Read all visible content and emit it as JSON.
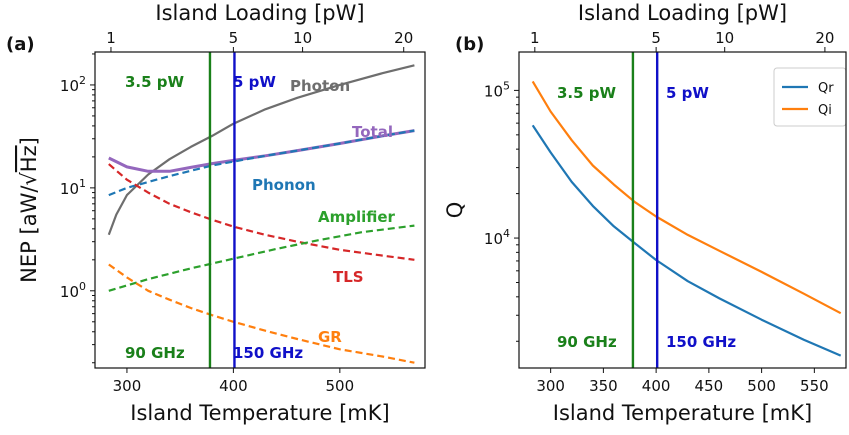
{
  "chart_data": [
    {
      "panel_label": "(a)",
      "type": "line",
      "xlabel": "Island Temperature [mK]",
      "ylabel_prefix": "NEP [aW/",
      "ylabel_root": "Hz",
      "ylabel_suffix": "]",
      "top_xlabel": "Island Loading [pW]",
      "top_ticks": [
        {
          "label": "1",
          "T": 285
        },
        {
          "label": "5",
          "T": 400
        },
        {
          "label": "10",
          "T": 465
        },
        {
          "label": "20",
          "T": 560
        }
      ],
      "xlim": [
        270,
        580
      ],
      "ylim_log10": [
        -0.75,
        2.32
      ],
      "yscale": "log",
      "xticks": [
        300,
        400,
        500
      ],
      "yticks": [
        {
          "label": "10",
          "exp": "0",
          "pow": 0
        },
        {
          "label": "10",
          "exp": "1",
          "pow": 1
        },
        {
          "label": "10",
          "exp": "2",
          "pow": 2
        }
      ],
      "series": [
        {
          "name": "Photon",
          "style": "solid",
          "color": "#6e6e6e",
          "x": [
            283,
            290,
            300,
            320,
            340,
            360,
            380,
            400,
            430,
            460,
            500,
            540,
            570
          ],
          "y": [
            3.5,
            5.5,
            8.5,
            13.5,
            19,
            25,
            32,
            42,
            58,
            75,
            100,
            130,
            155
          ]
        },
        {
          "name": "Total",
          "style": "solid",
          "color": "#9467bd",
          "x": [
            283,
            300,
            320,
            340,
            360,
            380,
            400,
            430,
            460,
            500,
            540,
            570
          ],
          "y": [
            19.5,
            16,
            14.5,
            14.5,
            15.8,
            17.2,
            18.5,
            20.5,
            23,
            27,
            32,
            36
          ]
        },
        {
          "name": "Phonon",
          "style": "dashed",
          "color": "#1f77b4",
          "x": [
            283,
            300,
            340,
            380,
            400,
            430,
            460,
            500,
            540,
            570
          ],
          "y": [
            8.5,
            10,
            13,
            16.5,
            18,
            20.5,
            23,
            27,
            32,
            36
          ]
        },
        {
          "name": "TLS",
          "style": "dashed",
          "color": "#d62728",
          "x": [
            283,
            300,
            320,
            340,
            360,
            380,
            400,
            430,
            460,
            500,
            540,
            570
          ],
          "y": [
            17,
            12,
            9,
            7,
            5.8,
            4.9,
            4.2,
            3.5,
            3,
            2.5,
            2.2,
            2.0
          ]
        },
        {
          "name": "Amplifier",
          "style": "dashed",
          "color": "#2ca02c",
          "x": [
            283,
            320,
            360,
            400,
            440,
            480,
            520,
            570
          ],
          "y": [
            1.0,
            1.3,
            1.65,
            2.05,
            2.55,
            3.1,
            3.7,
            4.3
          ]
        },
        {
          "name": "GR",
          "style": "dashed",
          "color": "#ff7f0e",
          "x": [
            283,
            300,
            320,
            340,
            360,
            380,
            400,
            430,
            460,
            500,
            540,
            570
          ],
          "y": [
            1.8,
            1.35,
            1.0,
            0.82,
            0.68,
            0.58,
            0.5,
            0.41,
            0.34,
            0.27,
            0.23,
            0.2
          ]
        }
      ],
      "vlines": [
        {
          "x": 378,
          "color": "#1a801a",
          "top_label": "3.5 pW",
          "bottom_label": "90 GHz"
        },
        {
          "x": 401,
          "color": "#1010c8",
          "top_label": "5 pW",
          "bottom_label": "150 GHz"
        }
      ]
    },
    {
      "panel_label": "(b)",
      "type": "line",
      "xlabel": "Island Temperature [mK]",
      "ylabel": "Q",
      "top_xlabel": "Island Loading [pW]",
      "top_ticks": [
        {
          "label": "1",
          "T": 285
        },
        {
          "label": "5",
          "T": 400
        },
        {
          "label": "10",
          "T": 465
        },
        {
          "label": "20",
          "T": 560
        }
      ],
      "xlim": [
        270,
        580
      ],
      "ylim_log10": [
        3.12,
        5.26
      ],
      "yscale": "log",
      "xticks": [
        300,
        350,
        400,
        450,
        500,
        550
      ],
      "yticks": [
        {
          "label": "10",
          "exp": "4",
          "pow": 4
        },
        {
          "label": "10",
          "exp": "5",
          "pow": 5
        }
      ],
      "legend_position": "top-right",
      "series": [
        {
          "name": "Qr",
          "style": "solid",
          "color": "#1f77b4",
          "x": [
            283,
            300,
            320,
            340,
            360,
            380,
            400,
            430,
            460,
            500,
            540,
            575
          ],
          "y": [
            58000,
            38000,
            24000,
            16500,
            12000,
            9200,
            7100,
            5100,
            3900,
            2800,
            2050,
            1600
          ]
        },
        {
          "name": "Qi",
          "style": "solid",
          "color": "#ff7f0e",
          "x": [
            283,
            300,
            320,
            340,
            360,
            380,
            400,
            430,
            460,
            500,
            540,
            575
          ],
          "y": [
            115000,
            72000,
            46000,
            31000,
            23000,
            17500,
            14000,
            10500,
            8200,
            5900,
            4200,
            3100
          ]
        }
      ],
      "vlines": [
        {
          "x": 378,
          "color": "#1a801a",
          "top_label": "3.5 pW",
          "bottom_label": "90 GHz"
        },
        {
          "x": 401,
          "color": "#1010c8",
          "top_label": "5 pW",
          "bottom_label": "150 GHz"
        }
      ]
    }
  ]
}
